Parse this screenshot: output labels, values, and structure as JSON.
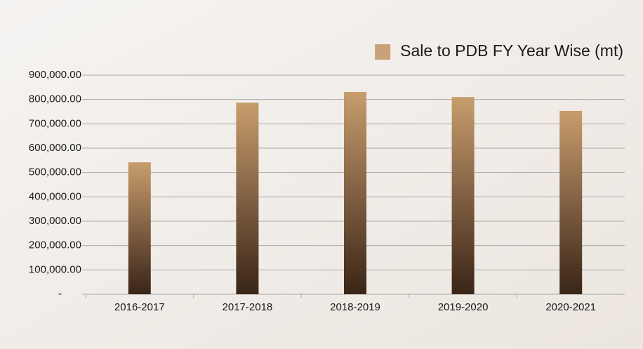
{
  "chart_data": {
    "type": "bar",
    "categories": [
      "2016-2017",
      "2017-2018",
      "2018-2019",
      "2019-2020",
      "2020-2021"
    ],
    "series": [
      {
        "name": "Sale to PDB FY Year Wise (mt)",
        "color": "#c9a27a",
        "values": [
          542000,
          787000,
          831000,
          810000,
          753000
        ]
      }
    ],
    "ylim": [
      0,
      900000
    ],
    "yticks": [
      {
        "value": 0,
        "label": "-"
      },
      {
        "value": 100000,
        "label": "100,000.00"
      },
      {
        "value": 200000,
        "label": "200,000.00"
      },
      {
        "value": 300000,
        "label": "300,000.00"
      },
      {
        "value": 400000,
        "label": "400,000.00"
      },
      {
        "value": 500000,
        "label": "500,000.00"
      },
      {
        "value": 600000,
        "label": "600,000.00"
      },
      {
        "value": 700000,
        "label": "700,000.00"
      },
      {
        "value": 800000,
        "label": "800,000.00"
      },
      {
        "value": 900000,
        "label": "900,000.00"
      }
    ],
    "grid": true,
    "legend": "top-right"
  }
}
